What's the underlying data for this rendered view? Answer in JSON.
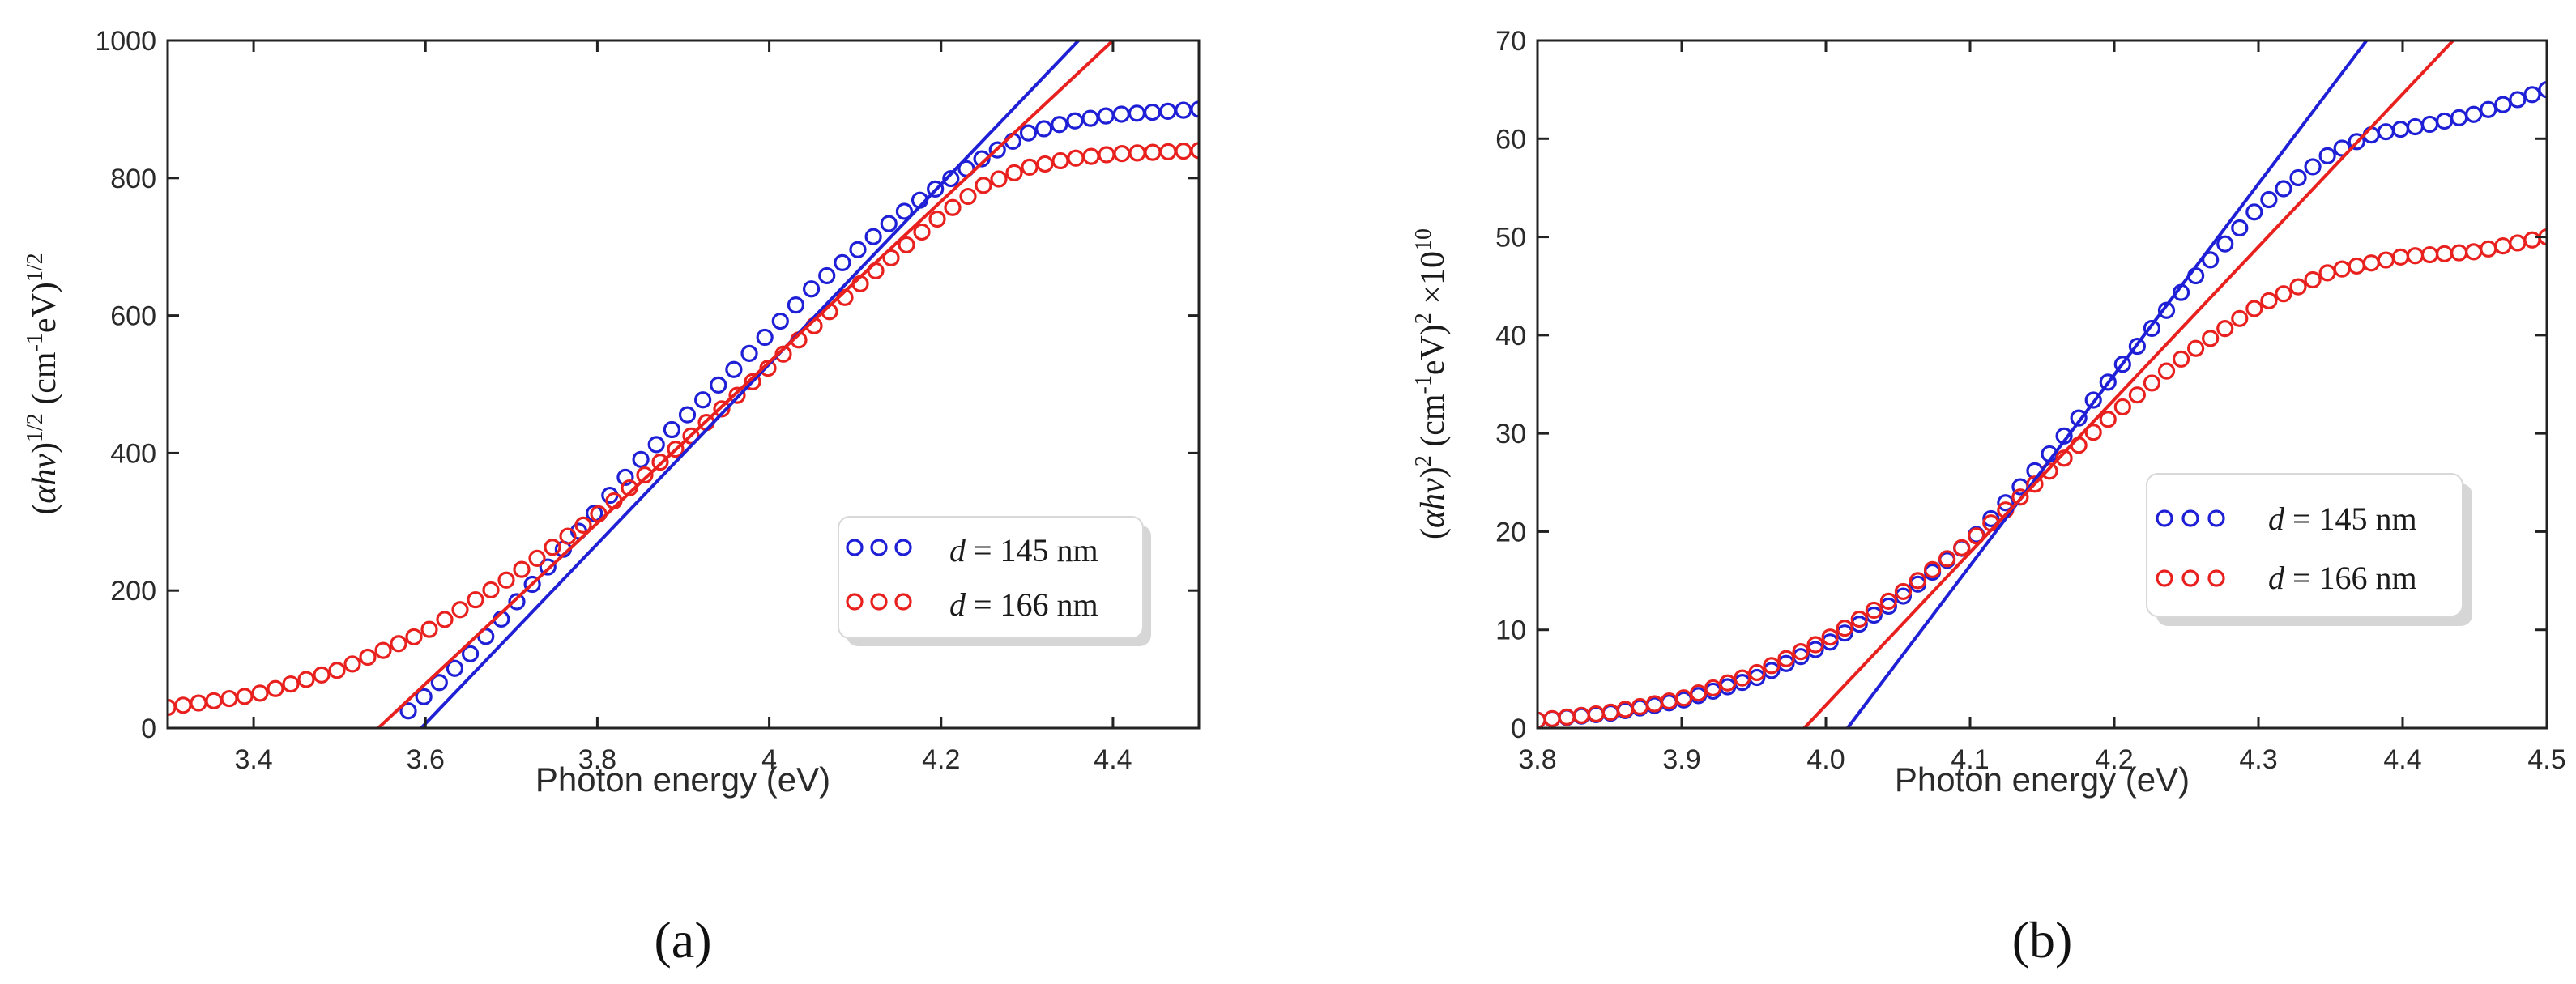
{
  "chart_data": [
    {
      "type": "scatter",
      "panel_label": "(a)",
      "xlabel": "Photon energy (eV)",
      "ylabel": "(αhν)^1/2 (cm-1eV)^1/2",
      "ylabel_parts": {
        "open": "(",
        "sym": "αhν",
        "close": ")",
        "sup1": "1/2",
        "mid": " (cm",
        "sup2": "-1",
        "unit": "eV)",
        "sup3": "1/2"
      },
      "xlim": [
        3.3,
        4.5
      ],
      "ylim": [
        0,
        1000
      ],
      "xticks": [
        3.4,
        3.6,
        3.8,
        4.0,
        4.2,
        4.4
      ],
      "xtick_labels": [
        "3.4",
        "3.6",
        "3.8",
        "4",
        "4.2",
        "4.4"
      ],
      "yticks": [
        0,
        200,
        400,
        600,
        800,
        1000
      ],
      "ytick_labels": [
        "0",
        "200",
        "400",
        "600",
        "800",
        "1000"
      ],
      "legend_position": "center-right",
      "series": [
        {
          "name": "d = 145 nm",
          "d_label": "d",
          "value_label": " = 145 nm",
          "color": "#1f1fd6",
          "x_range": [
            3.58,
            4.5
          ],
          "n_points": 52,
          "points": [
            [
              3.58,
              25
            ],
            [
              3.65,
              105
            ],
            [
              3.75,
              245
            ],
            [
              3.85,
              390
            ],
            [
              3.95,
              510
            ],
            [
              4.05,
              640
            ],
            [
              4.15,
              745
            ],
            [
              4.2,
              790
            ],
            [
              4.25,
              830
            ],
            [
              4.3,
              865
            ],
            [
              4.35,
              882
            ],
            [
              4.4,
              892
            ],
            [
              4.5,
              900
            ]
          ],
          "fit_line": [
            [
              3.595,
              0
            ],
            [
              4.36,
              1000
            ]
          ]
        },
        {
          "name": "d = 166 nm",
          "d_label": "d",
          "value_label": " = 166 nm",
          "color": "#e8211f",
          "x_range": [
            3.3,
            4.5
          ],
          "n_points": 68,
          "points": [
            [
              3.3,
              30
            ],
            [
              3.4,
              48
            ],
            [
              3.5,
              85
            ],
            [
              3.6,
              140
            ],
            [
              3.7,
              220
            ],
            [
              3.8,
              310
            ],
            [
              3.9,
              415
            ],
            [
              4.0,
              525
            ],
            [
              4.1,
              640
            ],
            [
              4.2,
              745
            ],
            [
              4.25,
              790
            ],
            [
              4.3,
              815
            ],
            [
              4.35,
              828
            ],
            [
              4.4,
              835
            ],
            [
              4.5,
              840
            ]
          ],
          "fit_line": [
            [
              3.545,
              0
            ],
            [
              4.4,
              1000
            ]
          ]
        }
      ]
    },
    {
      "type": "scatter",
      "panel_label": "(b)",
      "xlabel": "Photon energy (eV)",
      "ylabel": "(αhν)^2 (cm-1eV)^2 ×10^10",
      "ylabel_parts": {
        "open": "(",
        "sym": "αhν",
        "close": ")",
        "sup1": "2",
        "mid": " (cm",
        "sup2": "-1",
        "unit": "eV)",
        "sup3": "2",
        "tail": " ×10",
        "sup4": "10"
      },
      "xlim": [
        3.8,
        4.5
      ],
      "ylim": [
        0,
        70
      ],
      "xticks": [
        3.8,
        3.9,
        4.0,
        4.1,
        4.2,
        4.3,
        4.4,
        4.5
      ],
      "xtick_labels": [
        "3.8",
        "3.9",
        "4.0",
        "4.1",
        "4.2",
        "4.3",
        "4.4",
        "4.5"
      ],
      "yticks": [
        0,
        10,
        20,
        30,
        40,
        50,
        60,
        70
      ],
      "ytick_labels": [
        "0",
        "10",
        "20",
        "30",
        "40",
        "50",
        "60",
        "70"
      ],
      "legend_position": "center-right",
      "series": [
        {
          "name": "d = 145 nm",
          "d_label": "d",
          "value_label": " = 145 nm",
          "color": "#1f1fd6",
          "x_range": [
            3.8,
            4.5
          ],
          "n_points": 70,
          "points": [
            [
              3.8,
              0.8
            ],
            [
              3.85,
              1.5
            ],
            [
              3.9,
              2.8
            ],
            [
              3.95,
              5.0
            ],
            [
              4.0,
              8.5
            ],
            [
              4.05,
              13
            ],
            [
              4.1,
              19
            ],
            [
              4.15,
              27
            ],
            [
              4.2,
              36
            ],
            [
              4.25,
              45
            ],
            [
              4.3,
              53
            ],
            [
              4.35,
              58.5
            ],
            [
              4.38,
              60.5
            ],
            [
              4.42,
              61.5
            ],
            [
              4.45,
              62.5
            ],
            [
              4.5,
              65
            ]
          ],
          "fit_line": [
            [
              4.015,
              0
            ],
            [
              4.375,
              70
            ]
          ]
        },
        {
          "name": "d = 166 nm",
          "d_label": "d",
          "value_label": " = 166 nm",
          "color": "#e8211f",
          "x_range": [
            3.8,
            4.5
          ],
          "n_points": 70,
          "points": [
            [
              3.8,
              0.8
            ],
            [
              3.85,
              1.6
            ],
            [
              3.9,
              3.0
            ],
            [
              3.95,
              5.5
            ],
            [
              4.0,
              9.0
            ],
            [
              4.05,
              13.5
            ],
            [
              4.1,
              19
            ],
            [
              4.15,
              25.5
            ],
            [
              4.2,
              32
            ],
            [
              4.25,
              38
            ],
            [
              4.3,
              43
            ],
            [
              4.35,
              46.5
            ],
            [
              4.4,
              48
            ],
            [
              4.45,
              48.5
            ],
            [
              4.5,
              50
            ]
          ],
          "fit_line": [
            [
              3.985,
              0
            ],
            [
              4.435,
              70
            ]
          ]
        }
      ]
    }
  ]
}
